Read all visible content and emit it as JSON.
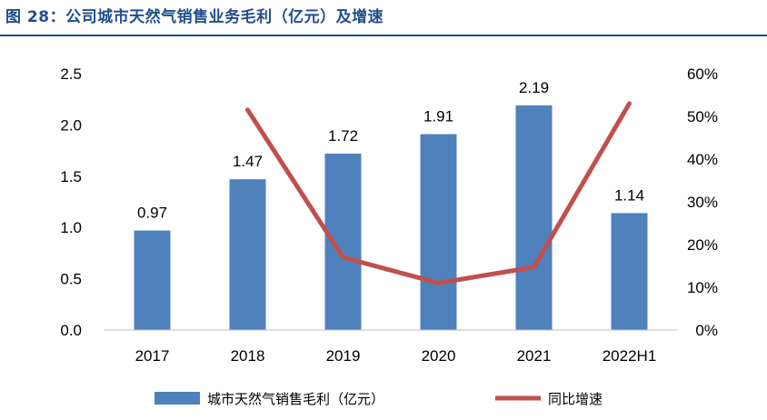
{
  "figure": {
    "title": "图 28：公司城市天然气销售业务毛利（亿元）及增速"
  },
  "colors": {
    "title": "#1f4e8c",
    "bar": "#4f81bd",
    "line": "#c0504d"
  },
  "chart_data": {
    "type": "bar",
    "categories": [
      "2017",
      "2018",
      "2019",
      "2020",
      "2021",
      "2022H1"
    ],
    "series": [
      {
        "name": "城市天然气销售毛利（亿元）",
        "type": "bar",
        "axis": "left",
        "values": [
          0.97,
          1.47,
          1.72,
          1.91,
          2.19,
          1.14
        ],
        "data_labels": [
          "0.97",
          "1.47",
          "1.72",
          "1.91",
          "2.19",
          "1.14"
        ]
      },
      {
        "name": "同比增速",
        "type": "line",
        "axis": "right",
        "values": [
          null,
          0.515,
          0.17,
          0.11,
          0.147,
          0.53
        ]
      }
    ],
    "y_left": {
      "lim": [
        0,
        2.5
      ],
      "ticks": [
        "0.0",
        "0.5",
        "1.0",
        "1.5",
        "2.0",
        "2.5"
      ]
    },
    "y_right": {
      "lim": [
        0,
        0.6
      ],
      "ticks": [
        "0%",
        "10%",
        "20%",
        "30%",
        "40%",
        "50%",
        "60%"
      ]
    },
    "grid": false,
    "legend_position": "bottom"
  }
}
